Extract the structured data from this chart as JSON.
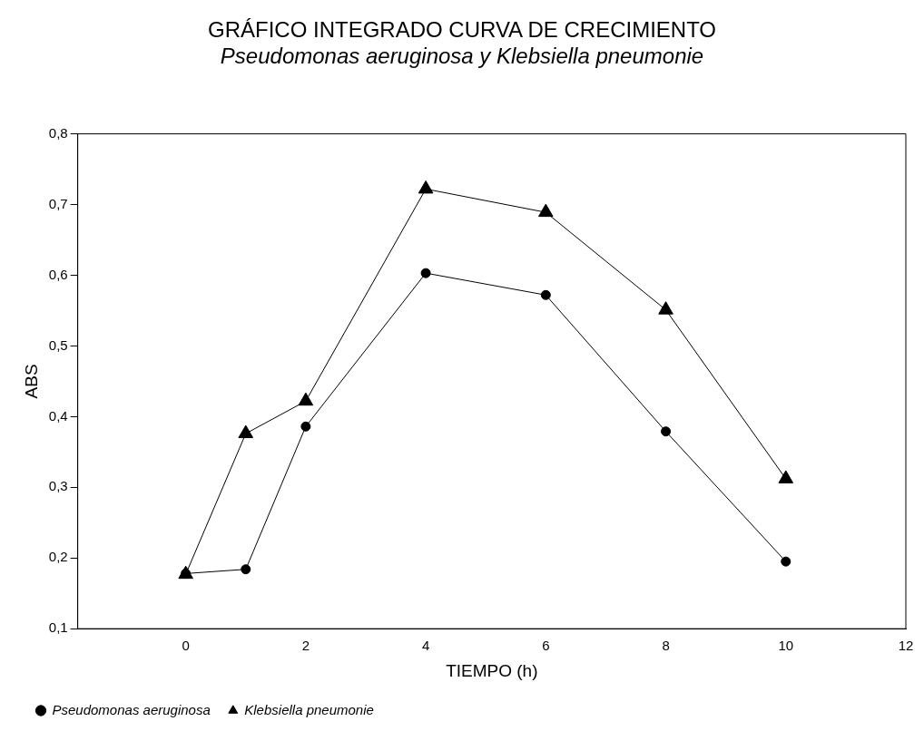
{
  "chart_data": {
    "type": "line",
    "title": "GRÁFICO INTEGRADO CURVA DE CRECIMIENTO",
    "subtitle": "Pseudomonas aeruginosa y Klebsiella pneumonie",
    "xlabel": "TIEMPO (h)",
    "ylabel": "ABS",
    "x": [
      0,
      1,
      2,
      4,
      6,
      8,
      10
    ],
    "series": [
      {
        "name": "Pseudomonas aeruginosa",
        "color": "#000000",
        "marker": "circle",
        "values": [
          0.178,
          0.184,
          0.386,
          0.603,
          0.572,
          0.379,
          0.195
        ]
      },
      {
        "name": "Klebsiella pneumonie",
        "color": "#000000",
        "marker": "triangle",
        "values": [
          0.177,
          0.376,
          0.422,
          0.722,
          0.689,
          0.551,
          0.312
        ]
      }
    ],
    "xlim": [
      -1.8,
      12
    ],
    "xticks": [
      0,
      2,
      4,
      6,
      8,
      10,
      12
    ],
    "ylim": [
      0.1,
      0.8
    ],
    "yticks": [
      {
        "value": 0.1,
        "label": "0,1"
      },
      {
        "value": 0.2,
        "label": "0,2"
      },
      {
        "value": 0.3,
        "label": "0,3"
      },
      {
        "value": 0.4,
        "label": "0,4"
      },
      {
        "value": 0.5,
        "label": "0,5"
      },
      {
        "value": 0.6,
        "label": "0,6"
      },
      {
        "value": 0.7,
        "label": "0,7"
      },
      {
        "value": 0.8,
        "label": "0,8"
      }
    ],
    "grid": false,
    "legend": "bottom left",
    "line_style": "solid"
  }
}
